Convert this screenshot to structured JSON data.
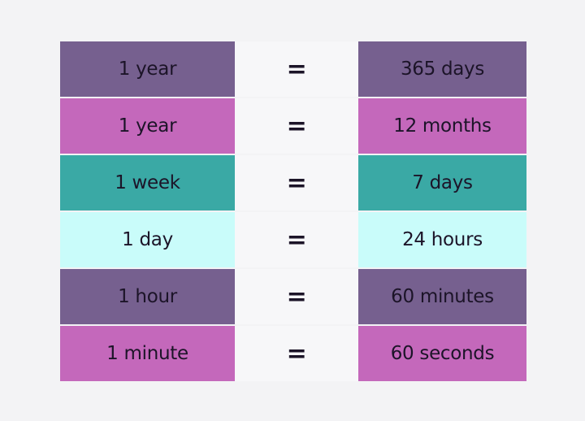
{
  "rows": [
    {
      "left": "1 year",
      "eq": "=",
      "right": "365 days",
      "color": "#76608f"
    },
    {
      "left": "1 year",
      "eq": "=",
      "right": "12 months",
      "color": "#c468bb"
    },
    {
      "left": "1 week",
      "eq": "=",
      "right": "7 days",
      "color": "#3aa9a5"
    },
    {
      "left": "1 day",
      "eq": "=",
      "right": "24 hours",
      "color": "#c9fcfa"
    },
    {
      "left": "1 hour",
      "eq": "=",
      "right": "60 minutes",
      "color": "#76608f"
    },
    {
      "left": "1 minute",
      "eq": "=",
      "right": "60 seconds",
      "color": "#c468bb"
    }
  ]
}
